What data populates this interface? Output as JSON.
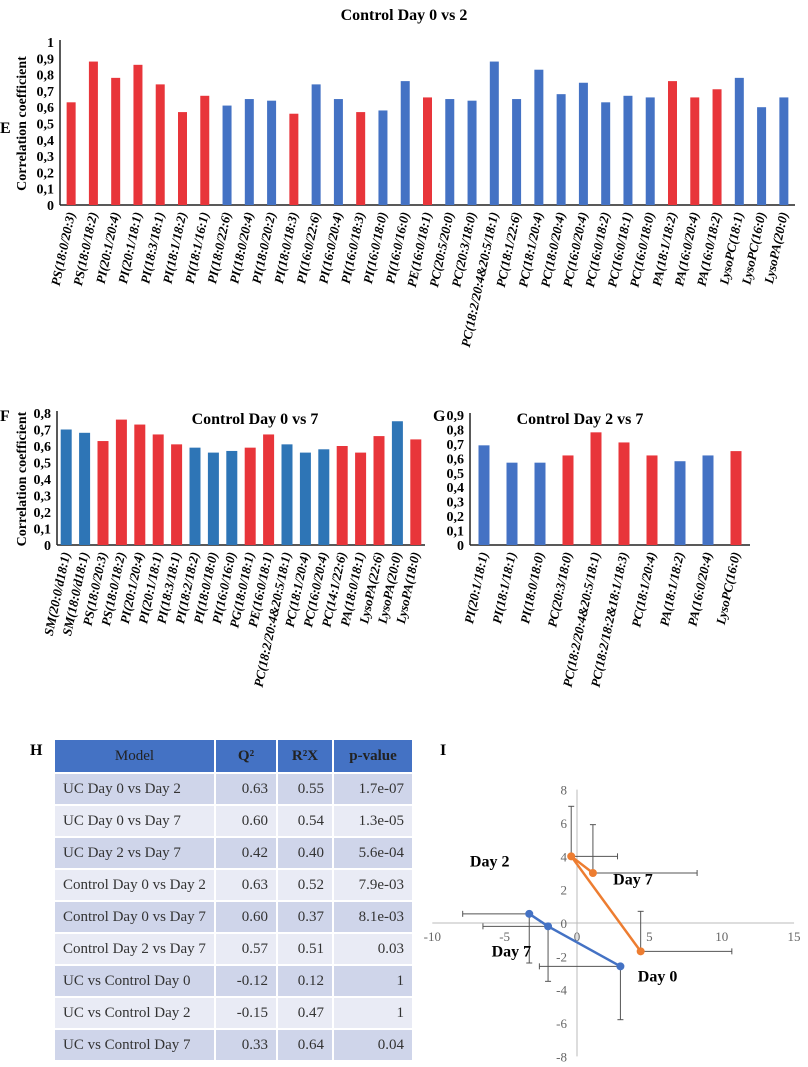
{
  "colors": {
    "red": "#e8353a",
    "blue": "#4472c4",
    "blue_f": "#2e75b6",
    "orange": "#ed7d31",
    "table_header": "#4472c4",
    "row_dark": "#cfd5ea",
    "row_light": "#e9ebf5"
  },
  "panels": {
    "e": "E",
    "f": "F",
    "g": "G",
    "h": "H",
    "i": "I"
  },
  "chart_data": [
    {
      "id": "E",
      "type": "bar",
      "title": "Control Day 0 vs 2",
      "ylabel": "Correlation coefficient",
      "ylim": [
        0,
        1
      ],
      "yticks": [
        "0",
        "0,1",
        "0,2",
        "0,3",
        "0,4",
        "0,5",
        "0,6",
        "0,7",
        "0,8",
        "0,9",
        "1"
      ],
      "categories": [
        "PS(18:0/20:3)",
        "PS(18:0/18:2)",
        "PI(20:1/20:4)",
        "PI(20:1/18:1)",
        "PI(18:3/18:1)",
        "PI(18:1/18:2)",
        "PI(18:1/16:1)",
        "PI(18:0/22:6)",
        "PI(18:0/20:4)",
        "PI(18:0/20:2)",
        "PI(18:0/18:3)",
        "PI(16:0/22:6)",
        "PI(16:0/20:4)",
        "PI(16:0/18:3)",
        "PI(16:0/18:0)",
        "PI(16:0/16:0)",
        "PE(16:0/18:1)",
        "PC(20:5/20:0)",
        "PC(20:3/18:0)",
        "PC(18:2/20:4&20:5/18:1)",
        "PC(18:1/22:6)",
        "PC(18:1/20:4)",
        "PC(18:0/20:4)",
        "PC(16:0/20:4)",
        "PC(16:0/18:2)",
        "PC(16:0/18:1)",
        "PC(16:0/18:0)",
        "PA(18:1/18:2)",
        "PA(16:0/20:4)",
        "PA(16:0/18:2)",
        "LysoPC(18:1)",
        "LysoPC(16:0)",
        "LysoPA(20:0)"
      ],
      "values": [
        0.63,
        0.88,
        0.78,
        0.86,
        0.74,
        0.57,
        0.67,
        0.61,
        0.65,
        0.64,
        0.56,
        0.74,
        0.65,
        0.57,
        0.58,
        0.76,
        0.66,
        0.65,
        0.64,
        0.88,
        0.65,
        0.83,
        0.68,
        0.75,
        0.63,
        0.67,
        0.66,
        0.76,
        0.66,
        0.71,
        0.78,
        0.6,
        0.66
      ],
      "bar_colors": [
        "red",
        "red",
        "red",
        "red",
        "red",
        "red",
        "red",
        "blue",
        "blue",
        "blue",
        "red",
        "blue",
        "blue",
        "red",
        "blue",
        "blue",
        "red",
        "blue",
        "blue",
        "blue",
        "blue",
        "blue",
        "blue",
        "blue",
        "blue",
        "blue",
        "blue",
        "red",
        "red",
        "red",
        "blue",
        "blue",
        "blue"
      ]
    },
    {
      "id": "F",
      "type": "bar",
      "title": "Control Day 0 vs 7",
      "ylabel": "Correlation coefficient",
      "ylim": [
        0,
        0.8
      ],
      "yticks": [
        "0",
        "0,1",
        "0,2",
        "0,3",
        "0,4",
        "0,5",
        "0,6",
        "0,7",
        "0,8"
      ],
      "categories": [
        "SM(20:0/d18:1)",
        "SM(18:0/d18:1)",
        "PS(18:0/20:3)",
        "PS(18:0/18:2)",
        "PI(20:1/20:4)",
        "PI(20:1/18:1)",
        "PI(18:3/18:1)",
        "PI(18:2/18:2)",
        "PI(18:0/18:0)",
        "PI(16:0/16:0)",
        "PG(18:0/18:1)",
        "PE(16:0/18:1)",
        "PC(18:2/20:4&20:5/18:1)",
        "PC(18:1/20:4)",
        "PC(16:0/20:4)",
        "PC(14:1/22:6)",
        "PA(18:0/18:1)",
        "LysoPA(22:6)",
        "LysoPA(20:0)",
        "LysoPA(18:0)"
      ],
      "values": [
        0.7,
        0.68,
        0.63,
        0.76,
        0.73,
        0.67,
        0.61,
        0.59,
        0.56,
        0.57,
        0.59,
        0.67,
        0.61,
        0.56,
        0.58,
        0.6,
        0.56,
        0.66,
        0.75,
        0.64
      ],
      "bar_colors": [
        "blue_f",
        "blue_f",
        "red",
        "red",
        "red",
        "red",
        "red",
        "blue_f",
        "blue_f",
        "blue_f",
        "red",
        "red",
        "blue_f",
        "blue_f",
        "blue_f",
        "red",
        "red",
        "red",
        "blue_f",
        "red"
      ]
    },
    {
      "id": "G",
      "type": "bar",
      "title": "Control Day 2 vs 7",
      "ylim": [
        0,
        0.9
      ],
      "yticks": [
        "0",
        "0,1",
        "0,2",
        "0,3",
        "0,4",
        "0,5",
        "0,6",
        "0,7",
        "0,8",
        "0,9"
      ],
      "categories": [
        "PI(20:1/18:1)",
        "PI(18:1/18:1)",
        "PI(18:0/18:0)",
        "PC(20:3/18:0)",
        "PC(18:2/20:4&20:5/18:1)",
        "PC(18:2/18:2&18:1/18:3)",
        "PC(18:1/20:4)",
        "PA(18:1/18:2)",
        "PA(16:0/20:4)",
        "LysoPC(16:0)"
      ],
      "values": [
        0.69,
        0.57,
        0.57,
        0.62,
        0.78,
        0.71,
        0.62,
        0.58,
        0.62,
        0.65
      ],
      "bar_colors": [
        "blue",
        "blue",
        "blue",
        "red",
        "red",
        "red",
        "red",
        "blue",
        "blue",
        "red"
      ]
    },
    {
      "id": "H",
      "type": "table",
      "columns": [
        "Model",
        "Q²",
        "R²X",
        "p-value"
      ],
      "rows": [
        [
          "UC Day 0 vs Day 2",
          "0.63",
          "0.55",
          "1.7e-07"
        ],
        [
          "UC Day 0 vs Day 7",
          "0.60",
          "0.54",
          "1.3e-05"
        ],
        [
          "UC Day 2 vs Day 7",
          "0.42",
          "0.40",
          "5.6e-04"
        ],
        [
          "Control Day 0 vs Day 2",
          "0.63",
          "0.52",
          "7.9e-03"
        ],
        [
          "Control Day 0 vs Day 7",
          "0.60",
          "0.37",
          "8.1e-03"
        ],
        [
          "Control Day 2 vs Day 7",
          "0.57",
          "0.51",
          "0.03"
        ],
        [
          "UC vs Control Day 0",
          "-0.12",
          "0.12",
          "1"
        ],
        [
          "UC vs Control Day 2",
          "-0.15",
          "0.47",
          "1"
        ],
        [
          "UC vs Control Day 7",
          "0.33",
          "0.64",
          "0.04"
        ]
      ]
    },
    {
      "id": "I",
      "type": "scatter",
      "xlim": [
        -10,
        15
      ],
      "ylim": [
        -8,
        8
      ],
      "xticks": [
        -10,
        -5,
        0,
        5,
        10,
        15
      ],
      "yticks": [
        -8,
        -6,
        -4,
        -2,
        0,
        2,
        4,
        6,
        8
      ],
      "series": [
        {
          "color": "orange",
          "points": [
            {
              "x": 4.4,
              "y": -1.7,
              "x_err_end": 10.7,
              "y_err_end": 0.7
            },
            {
              "x": -0.4,
              "y": 4.0,
              "x_err_end": 2.8,
              "y_err_end": 7.0
            },
            {
              "x": 1.1,
              "y": 3.0,
              "x_err_end": 8.3,
              "y_err_end": 5.9
            }
          ]
        },
        {
          "color": "blue",
          "points": [
            {
              "x": -3.3,
              "y": 0.55,
              "x_err_end": -7.9,
              "y_err_end": -2.4
            },
            {
              "x": -2.0,
              "y": -0.2,
              "x_err_end": -6.5,
              "y_err_end": -3.5
            },
            {
              "x": 3.0,
              "y": -2.6,
              "x_err_end": -2.6,
              "y_err_end": -5.8
            }
          ]
        }
      ],
      "annotations": [
        {
          "text": "Day 2",
          "x": -7.4,
          "y": 3.4
        },
        {
          "text": "Day 7",
          "x": 2.5,
          "y": 2.3
        },
        {
          "text": "Day 7",
          "x": -5.9,
          "y": -2.0
        },
        {
          "text": "Day 0",
          "x": 4.2,
          "y": -3.5
        }
      ]
    }
  ]
}
